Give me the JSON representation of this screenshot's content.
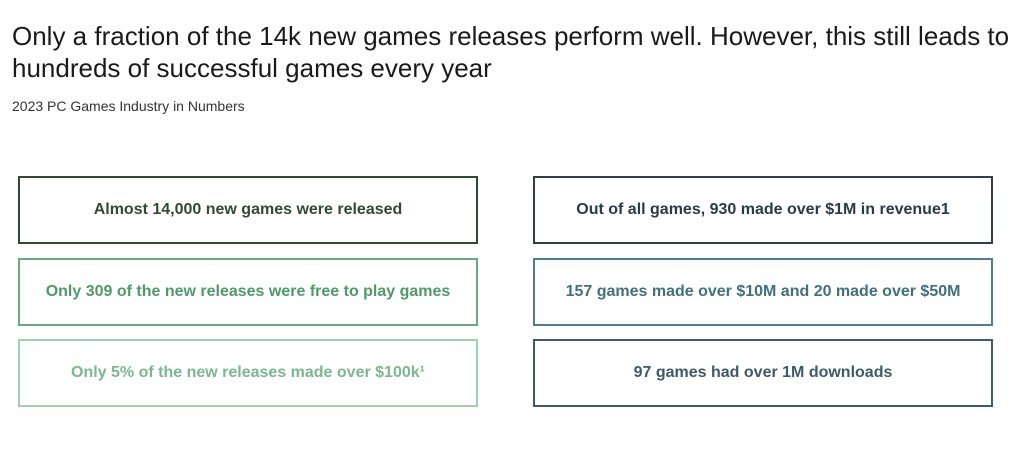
{
  "header": {
    "title": "Only a fraction of the 14k new games releases perform well. However, this still leads to hundreds of successful games every year",
    "subtitle": "2023 PC Games Industry in Numbers"
  },
  "left_boxes": [
    "Almost 14,000 new games were released",
    "Only 309 of the new releases were free to play games",
    "Only 5% of the new releases made over $100k¹"
  ],
  "right_boxes": [
    "Out of all games, 930 made over $1M in revenue1",
    "157 games made over $10M and 20 made over $50M",
    "97 games had over 1M downloads"
  ],
  "colors": {
    "left_row1": "#2f4a36",
    "left_row2": "#4e9b67",
    "left_row3": "#79b892",
    "right_row1": "#2a3b42",
    "right_row2": "#41707f",
    "right_row3": "#3c5b66"
  }
}
